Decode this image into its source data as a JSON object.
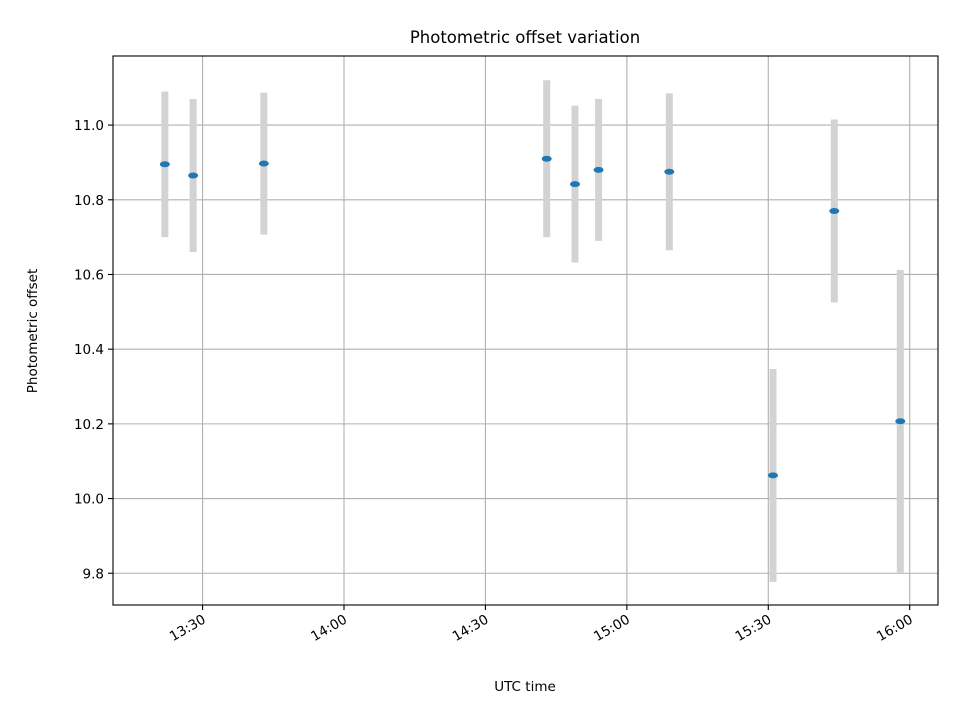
{
  "chart_data": {
    "type": "scatter",
    "title": "Photometric offset variation",
    "xlabel": "UTC time",
    "ylabel": "Photometric offset",
    "x_ticks": [
      "13:30",
      "14:00",
      "14:30",
      "15:00",
      "15:30",
      "16:00"
    ],
    "y_ticks": [
      "9.8",
      "10.0",
      "10.2",
      "10.4",
      "10.6",
      "10.8",
      "11.0"
    ],
    "xlim": [
      "13:11",
      "16:06"
    ],
    "ylim": [
      9.715,
      11.185
    ],
    "grid": true,
    "point_color": "#1f77b4",
    "errorbar_color": "#d3d3d3",
    "points": [
      {
        "x": "13:22",
        "y": 10.895,
        "yerr": 0.195
      },
      {
        "x": "13:28",
        "y": 10.865,
        "yerr": 0.205
      },
      {
        "x": "13:43",
        "y": 10.897,
        "yerr": 0.19
      },
      {
        "x": "14:43",
        "y": 10.91,
        "yerr": 0.21
      },
      {
        "x": "14:49",
        "y": 10.842,
        "yerr": 0.21
      },
      {
        "x": "14:54",
        "y": 10.88,
        "yerr": 0.19
      },
      {
        "x": "15:09",
        "y": 10.875,
        "yerr": 0.21
      },
      {
        "x": "15:31",
        "y": 10.062,
        "yerr": 0.285
      },
      {
        "x": "15:44",
        "y": 10.77,
        "yerr": 0.245
      },
      {
        "x": "15:58",
        "y": 10.207,
        "yerr": 0.405
      }
    ]
  }
}
